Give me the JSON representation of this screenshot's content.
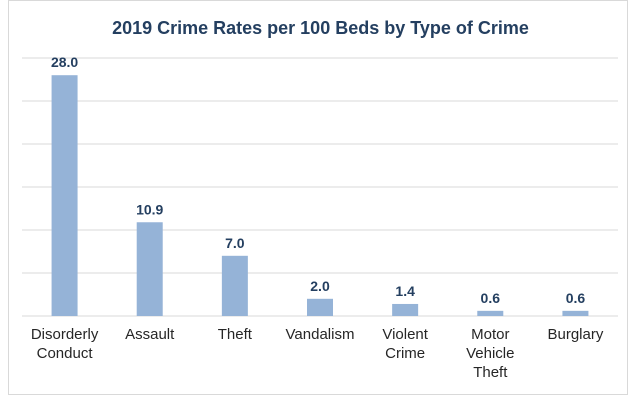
{
  "chart_data": {
    "type": "bar",
    "title": "2019 Crime Rates per 100 Beds by Type of Crime",
    "categories": [
      [
        "Disorderly",
        "Conduct"
      ],
      [
        "Assault"
      ],
      [
        "Theft"
      ],
      [
        "Vandalism"
      ],
      [
        "Violent",
        "Crime"
      ],
      [
        "Motor",
        "Vehicle",
        "Theft"
      ],
      [
        "Burglary"
      ]
    ],
    "category_names": [
      "Disorderly Conduct",
      "Assault",
      "Theft",
      "Vandalism",
      "Violent Crime",
      "Motor Vehicle Theft",
      "Burglary"
    ],
    "values": [
      28.0,
      10.9,
      7.0,
      2.0,
      1.4,
      0.6,
      0.6
    ],
    "value_labels": [
      "28.0",
      "10.9",
      "7.0",
      "2.0",
      "1.4",
      "0.6",
      "0.6"
    ],
    "xlabel": "",
    "ylabel": "",
    "ylim": [
      0,
      30
    ],
    "grid": true,
    "legend": "none",
    "colors": {
      "bar": "#95b3d7",
      "grid": "#d9d9d9",
      "title": "#243f60",
      "value_label": "#243f60",
      "category_label": "#262626"
    }
  }
}
